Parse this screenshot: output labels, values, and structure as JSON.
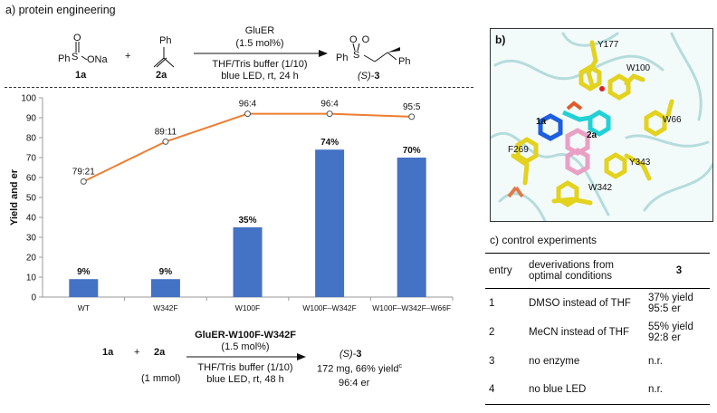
{
  "panel_a": {
    "title": "a) protein engineering",
    "reagent_1a": {
      "label": "1a",
      "structure_text": "Ph–S(=O)–ONa",
      "formula_left": "Ph",
      "formula_right": "ONa",
      "top_atom": "O"
    },
    "plus": "+",
    "reagent_2a": {
      "label": "2a",
      "top_group": "Ph"
    },
    "top_arrow": {
      "catalyst": "GluER",
      "loading": "(1.5 mol%)",
      "conditions_1": "THF/Tris buffer (1/10)",
      "conditions_2": "blue LED, rt, 24 h"
    },
    "product": {
      "label_prefix": "(S)-",
      "label_num": "3",
      "left_group": "Ph",
      "right_group": "Ph",
      "atom": "S",
      "oxygens": "O  O"
    }
  },
  "chart_data": {
    "type": "bar",
    "categories": [
      "WT",
      "W342F",
      "W100F",
      "W100F–W342F",
      "W100F–W342F–W66F"
    ],
    "series": [
      {
        "values": [
          9,
          9,
          35,
          74,
          70
        ],
        "labels": [
          "9%",
          "9%",
          "35%",
          "74%",
          "70%"
        ],
        "color": "#4472c4"
      },
      {
        "type": "line",
        "values": [
          58,
          78,
          92,
          92,
          90.5
        ],
        "labels": [
          "79:21",
          "89:11",
          "96:4",
          "96:4",
          "95:5"
        ],
        "color": "#ed7d31"
      }
    ],
    "ylabel": "Yield and er",
    "ylim": [
      0,
      100
    ],
    "yticks": [
      0,
      10,
      20,
      30,
      40,
      50,
      60,
      70,
      80,
      90,
      100
    ],
    "grid": false,
    "legend": "none"
  },
  "scale_up": {
    "reagent_1a": "1a",
    "plus": "+",
    "reagent_2a": "2a",
    "amount": "(1 mmol)",
    "catalyst": "GluER-W100F-W342F",
    "loading": "(1.5 mol%)",
    "conditions_1": "THF/Tris buffer (1/10)",
    "conditions_2": "blue LED, rt, 48 h",
    "product_prefix": "(S)-",
    "product_num": "3",
    "yield": "172 mg, 66% yield",
    "yield_sup": "c",
    "er": "96:4 er"
  },
  "panel_b": {
    "title": "b)",
    "labels": {
      "y177": "Y177",
      "w100": "W100",
      "w66": "W66",
      "y343": "Y343",
      "w342": "W342",
      "f269": "F269",
      "l1a": "1a",
      "l2a": "2a"
    }
  },
  "panel_c": {
    "title": "c) control experiments",
    "headers": {
      "entry": "entry",
      "deviation_1": "deverivations from",
      "deviation_2": "optimal conditions",
      "result": "3"
    },
    "rows": [
      {
        "entry": "1",
        "deviation": "DMSO instead of THF",
        "result_1": "37% yield",
        "result_2": "95:5 er"
      },
      {
        "entry": "2",
        "deviation": "MeCN instead of THF",
        "result_1": "55% yield",
        "result_2": "92:8 er"
      },
      {
        "entry": "3",
        "deviation": "no enzyme",
        "result_1": "n.r.",
        "result_2": ""
      },
      {
        "entry": "4",
        "deviation": "no blue LED",
        "result_1": "n.r.",
        "result_2": ""
      }
    ]
  }
}
